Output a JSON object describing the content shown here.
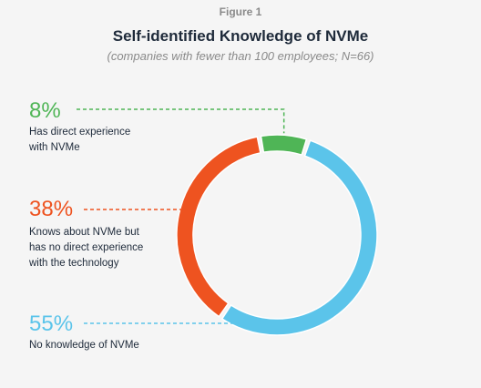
{
  "header": {
    "figure_label": "Figure 1",
    "title": "Self-identified Knowledge of NVMe",
    "subtitle": "(companies with fewer than 100 employees; N=66)"
  },
  "colors": {
    "green": "#4fb556",
    "orange": "#ee5320",
    "blue": "#5bc4ea",
    "text": "#1e2a3a",
    "muted": "#8a8a8a"
  },
  "chart_data": {
    "type": "pie",
    "variant": "donut",
    "title": "Self-identified Knowledge of NVMe",
    "subtitle": "(companies with fewer than 100 employees; N=66)",
    "slices": [
      {
        "label": "Has direct experience\nwith NVMe",
        "value": 8,
        "display": "8%",
        "color": "#4fb556"
      },
      {
        "label": "Knows about NVMe but\nhas no direct experience\nwith the technology",
        "value": 38,
        "display": "38%",
        "color": "#ee5320"
      },
      {
        "label": "No knowledge of NVMe",
        "value": 55,
        "display": "55%",
        "color": "#5bc4ea"
      }
    ]
  }
}
